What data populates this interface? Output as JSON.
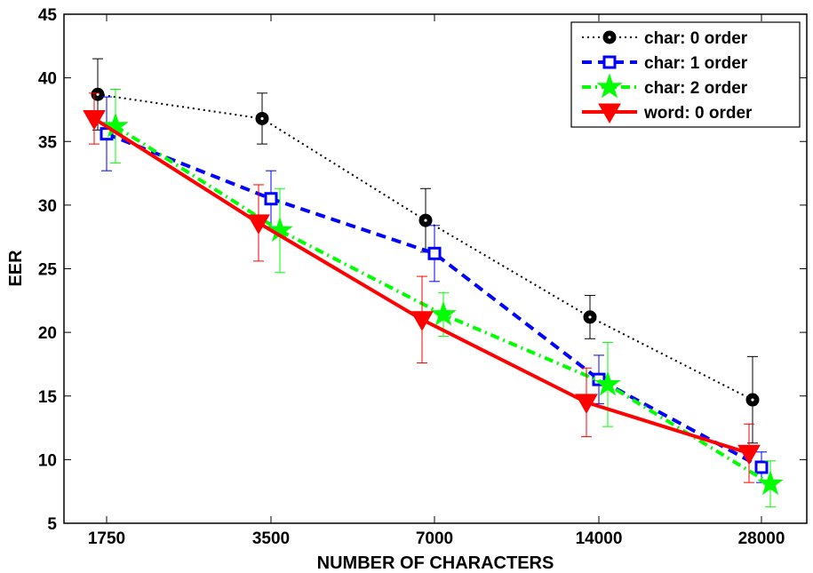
{
  "chart_data": {
    "type": "line",
    "title": "",
    "xlabel": "NUMBER OF CHARACTERS",
    "ylabel": "EER",
    "categories": [
      "1750",
      "3500",
      "7000",
      "14000",
      "28000"
    ],
    "ylim": [
      5,
      45
    ],
    "yticks": [
      5,
      10,
      15,
      20,
      25,
      30,
      35,
      40,
      45
    ],
    "grid": false,
    "legend_position": "top-right",
    "series": [
      {
        "name": "char: 0 order",
        "color": "#000000",
        "line_style": "dotted",
        "marker": "circle",
        "values": [
          38.7,
          36.8,
          28.8,
          21.2,
          14.7
        ],
        "errors": [
          2.8,
          2.0,
          2.5,
          1.7,
          3.4
        ]
      },
      {
        "name": "char: 1 order",
        "color": "#0000ff",
        "line_style": "dashed",
        "marker": "square",
        "values": [
          35.6,
          30.5,
          26.2,
          16.3,
          9.4
        ],
        "errors": [
          2.9,
          2.2,
          2.2,
          1.9,
          1.2
        ]
      },
      {
        "name": "char: 2 order",
        "color": "#00ff00",
        "line_style": "dashdot",
        "marker": "star",
        "values": [
          36.2,
          28.0,
          21.4,
          15.9,
          8.1
        ],
        "errors": [
          2.9,
          3.3,
          1.7,
          3.3,
          1.8
        ]
      },
      {
        "name": "word: 0 order",
        "color": "#ff0000",
        "line_style": "solid",
        "marker": "triangle-down",
        "values": [
          36.8,
          28.6,
          21.0,
          14.5,
          10.5
        ],
        "errors": [
          2.0,
          3.0,
          3.4,
          2.7,
          2.3
        ]
      }
    ]
  }
}
